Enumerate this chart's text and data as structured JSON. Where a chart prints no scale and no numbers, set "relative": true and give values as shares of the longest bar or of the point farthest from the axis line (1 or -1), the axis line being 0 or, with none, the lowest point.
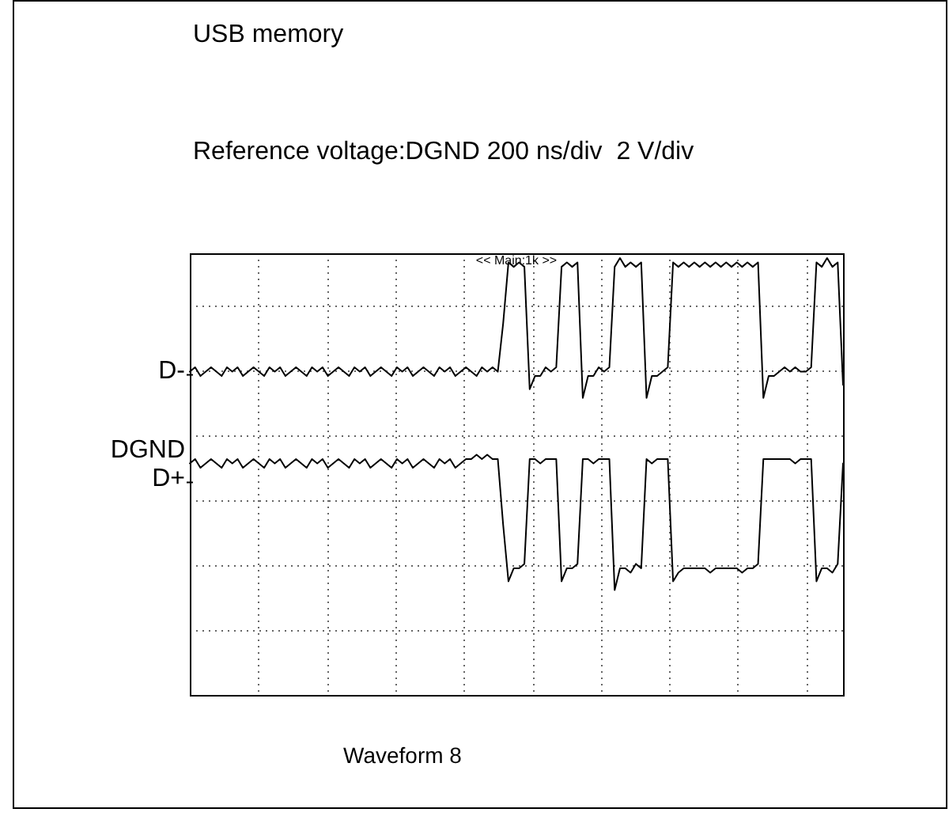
{
  "chart_data": {
    "type": "line",
    "title": "USB memory",
    "subtitle": "Reference voltage:DGND 200 ns/div  2 V/div",
    "relative": true,
    "grid": true,
    "legend": "left",
    "marker": "none",
    "line_style": "solid",
    "categories": [
      null,
      null,
      null,
      null,
      null,
      null,
      null,
      null,
      null,
      null,
      null,
      null,
      null,
      null,
      null,
      null,
      null,
      null,
      null,
      null,
      null,
      null,
      null,
      null,
      null,
      null,
      null,
      null,
      null,
      null,
      null,
      null,
      null,
      null,
      null,
      null,
      null,
      null,
      null,
      null,
      null,
      null,
      null,
      null,
      null,
      null,
      null,
      null,
      null,
      null,
      null,
      null,
      null,
      null,
      null,
      null,
      null,
      null,
      null,
      null,
      null,
      null,
      null,
      null,
      null,
      null,
      null,
      null,
      null,
      null,
      null,
      null,
      null,
      null,
      null,
      null,
      null,
      null,
      null,
      null,
      null,
      null,
      null,
      null,
      null,
      null,
      null,
      null,
      null,
      null,
      null,
      null,
      null,
      null,
      null,
      null,
      null,
      null,
      null,
      null,
      null,
      null,
      null,
      null,
      null,
      null,
      null,
      null,
      null,
      null,
      null,
      null,
      null,
      null,
      null,
      null,
      null,
      null,
      null,
      null,
      null,
      null,
      null,
      null
    ],
    "series": [
      {
        "name": "D-",
        "color": "#000000",
        "values": [
          0.74,
          0.75,
          0.73,
          0.74,
          0.75,
          0.74,
          0.73,
          0.75,
          0.74,
          0.75,
          0.73,
          0.74,
          0.75,
          0.74,
          0.73,
          0.75,
          0.74,
          0.75,
          0.73,
          0.74,
          0.75,
          0.74,
          0.73,
          0.75,
          0.74,
          0.75,
          0.73,
          0.74,
          0.75,
          0.74,
          0.73,
          0.75,
          0.74,
          0.75,
          0.73,
          0.74,
          0.75,
          0.74,
          0.73,
          0.75,
          0.74,
          0.75,
          0.73,
          0.74,
          0.75,
          0.74,
          0.73,
          0.75,
          0.74,
          0.75,
          0.73,
          0.74,
          0.75,
          0.74,
          0.73,
          0.75,
          0.74,
          0.75,
          0.74,
          0.85,
          0.99,
          0.98,
          0.99,
          0.98,
          0.7,
          0.73,
          0.73,
          0.75,
          0.74,
          0.75,
          0.98,
          0.99,
          0.98,
          0.99,
          0.68,
          0.73,
          0.73,
          0.75,
          0.74,
          0.75,
          0.98,
          1,
          0.98,
          0.99,
          0.98,
          0.99,
          0.68,
          0.73,
          0.73,
          0.74,
          0.75,
          0.99,
          0.98,
          0.99,
          0.98,
          0.99,
          0.98,
          0.99,
          0.98,
          0.99,
          0.98,
          0.99,
          0.98,
          0.99,
          0.98,
          0.99,
          0.98,
          0.99,
          0.68,
          0.73,
          0.73,
          0.74,
          0.75,
          0.74,
          0.75,
          0.74,
          0.74,
          0.75,
          0.99,
          0.98,
          1,
          0.98,
          0.99,
          0.71
        ]
      },
      {
        "name": "D+",
        "color": "#000000",
        "values": [
          0.53,
          0.54,
          0.52,
          0.53,
          0.54,
          0.53,
          0.52,
          0.54,
          0.53,
          0.54,
          0.52,
          0.53,
          0.54,
          0.53,
          0.52,
          0.54,
          0.53,
          0.54,
          0.52,
          0.53,
          0.54,
          0.53,
          0.52,
          0.54,
          0.53,
          0.54,
          0.52,
          0.53,
          0.54,
          0.53,
          0.52,
          0.54,
          0.53,
          0.54,
          0.52,
          0.53,
          0.54,
          0.53,
          0.52,
          0.54,
          0.53,
          0.54,
          0.52,
          0.53,
          0.54,
          0.53,
          0.52,
          0.54,
          0.53,
          0.54,
          0.52,
          0.53,
          0.54,
          0.54,
          0.55,
          0.54,
          0.55,
          0.54,
          0.54,
          0.39,
          0.26,
          0.29,
          0.29,
          0.3,
          0.54,
          0.54,
          0.53,
          0.54,
          0.54,
          0.54,
          0.26,
          0.29,
          0.29,
          0.3,
          0.54,
          0.54,
          0.53,
          0.54,
          0.54,
          0.54,
          0.24,
          0.29,
          0.29,
          0.28,
          0.3,
          0.29,
          0.54,
          0.53,
          0.54,
          0.54,
          0.54,
          0.26,
          0.28,
          0.29,
          0.29,
          0.29,
          0.29,
          0.29,
          0.28,
          0.29,
          0.29,
          0.29,
          0.29,
          0.29,
          0.28,
          0.29,
          0.29,
          0.3,
          0.54,
          0.54,
          0.54,
          0.54,
          0.54,
          0.54,
          0.53,
          0.54,
          0.54,
          0.54,
          0.26,
          0.29,
          0.29,
          0.28,
          0.3,
          0.53
        ]
      }
    ],
    "annotations": [
      "<< Main:1k >>",
      "DGND",
      "Waveform 8"
    ]
  }
}
